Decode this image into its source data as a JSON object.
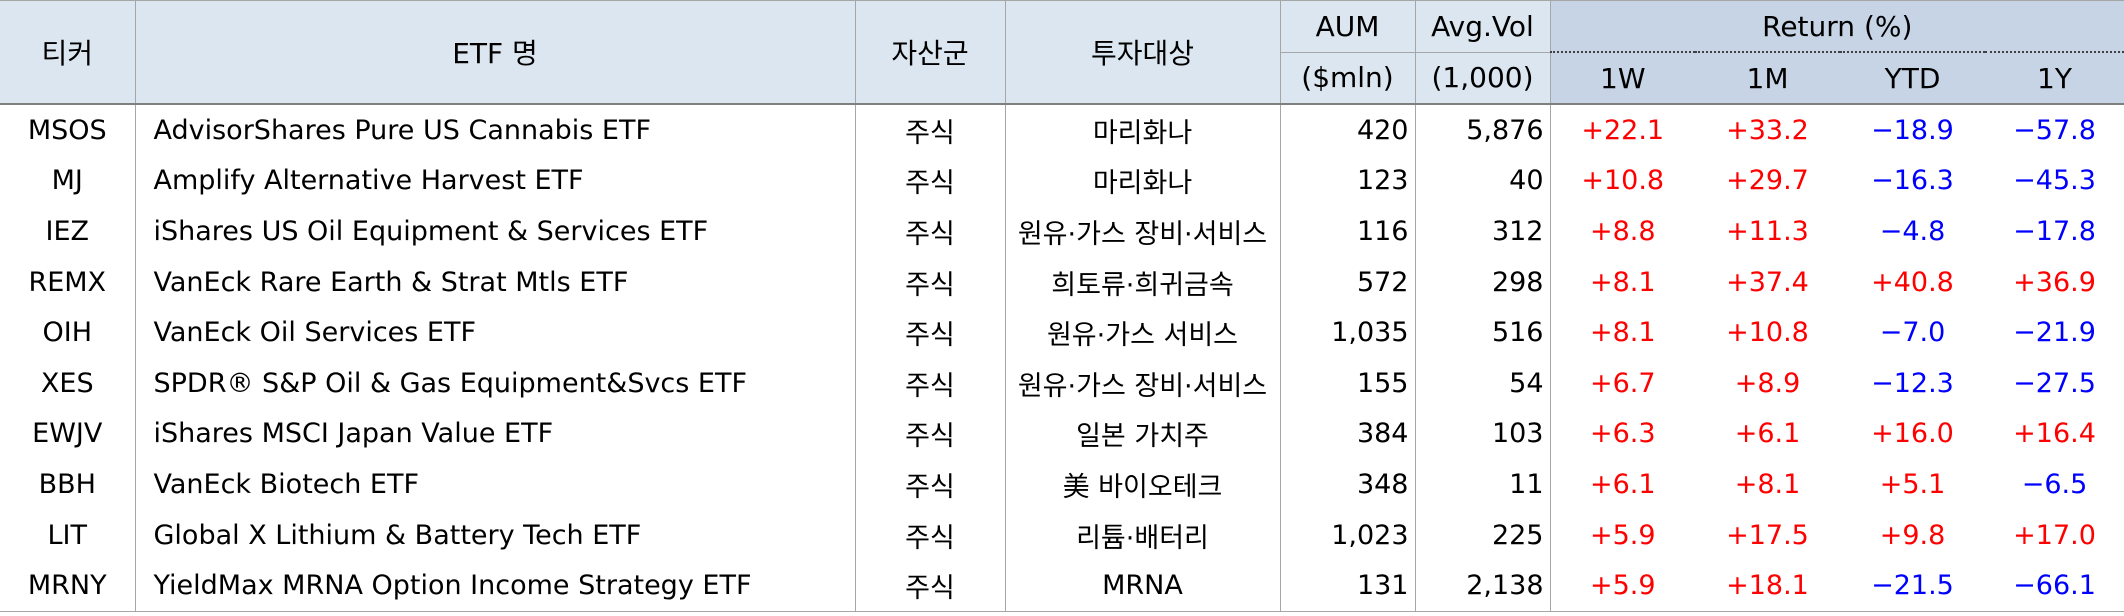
{
  "header": {
    "ticker": "티커",
    "etf_name": "ETF 명",
    "asset_class": "자산군",
    "target": "투자대상",
    "aum_line1": "AUM",
    "aum_line2": "($mln)",
    "vol_line1": "Avg.Vol",
    "vol_line2": "(1,000)",
    "return_group": "Return (%)",
    "ret_1w": "1W",
    "ret_1m": "1M",
    "ret_ytd": "YTD",
    "ret_1y": "1Y"
  },
  "colors": {
    "positive": "#ff0000",
    "negative": "#0000ff"
  },
  "rows": [
    {
      "ticker": "MSOS",
      "name": "AdvisorShares Pure US Cannabis ETF",
      "asset_class": "주식",
      "target": "마리화나",
      "aum": "420",
      "vol": "5,876",
      "r1w": "+22.1",
      "r1m": "+33.2",
      "rytd": "−18.9",
      "r1y": "−57.8"
    },
    {
      "ticker": "MJ",
      "name": "Amplify Alternative Harvest ETF",
      "asset_class": "주식",
      "target": "마리화나",
      "aum": "123",
      "vol": "40",
      "r1w": "+10.8",
      "r1m": "+29.7",
      "rytd": "−16.3",
      "r1y": "−45.3"
    },
    {
      "ticker": "IEZ",
      "name": "iShares US Oil Equipment & Services ETF",
      "asset_class": "주식",
      "target": "원유·가스 장비·서비스",
      "aum": "116",
      "vol": "312",
      "r1w": "+8.8",
      "r1m": "+11.3",
      "rytd": "−4.8",
      "r1y": "−17.8"
    },
    {
      "ticker": "REMX",
      "name": "VanEck Rare Earth & Strat Mtls ETF",
      "asset_class": "주식",
      "target": "희토류·희귀금속",
      "aum": "572",
      "vol": "298",
      "r1w": "+8.1",
      "r1m": "+37.4",
      "rytd": "+40.8",
      "r1y": "+36.9"
    },
    {
      "ticker": "OIH",
      "name": "VanEck Oil Services ETF",
      "asset_class": "주식",
      "target": "원유·가스 서비스",
      "aum": "1,035",
      "vol": "516",
      "r1w": "+8.1",
      "r1m": "+10.8",
      "rytd": "−7.0",
      "r1y": "−21.9"
    },
    {
      "ticker": "XES",
      "name": "SPDR® S&P Oil & Gas Equipment&Svcs ETF",
      "asset_class": "주식",
      "target": "원유·가스 장비·서비스",
      "aum": "155",
      "vol": "54",
      "r1w": "+6.7",
      "r1m": "+8.9",
      "rytd": "−12.3",
      "r1y": "−27.5"
    },
    {
      "ticker": "EWJV",
      "name": "iShares MSCI Japan Value ETF",
      "asset_class": "주식",
      "target": "일본 가치주",
      "aum": "384",
      "vol": "103",
      "r1w": "+6.3",
      "r1m": "+6.1",
      "rytd": "+16.0",
      "r1y": "+16.4"
    },
    {
      "ticker": "BBH",
      "name": "VanEck Biotech ETF",
      "asset_class": "주식",
      "target": "美 바이오테크",
      "aum": "348",
      "vol": "11",
      "r1w": "+6.1",
      "r1m": "+8.1",
      "rytd": "+5.1",
      "r1y": "−6.5"
    },
    {
      "ticker": "LIT",
      "name": "Global X Lithium & Battery Tech ETF",
      "asset_class": "주식",
      "target": "리튬·배터리",
      "aum": "1,023",
      "vol": "225",
      "r1w": "+5.9",
      "r1m": "+17.5",
      "rytd": "+9.8",
      "r1y": "+17.0"
    },
    {
      "ticker": "MRNY",
      "name": "YieldMax MRNA Option Income Strategy ETF",
      "asset_class": "주식",
      "target": "MRNA",
      "aum": "131",
      "vol": "2,138",
      "r1w": "+5.9",
      "r1m": "+18.1",
      "rytd": "−21.5",
      "r1y": "−66.1"
    }
  ]
}
